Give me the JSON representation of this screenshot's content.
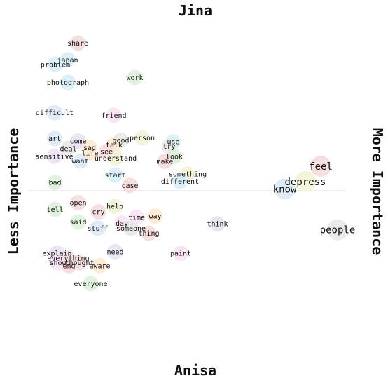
{
  "chart_data": {
    "type": "scatter",
    "title": "",
    "axis_labels": {
      "top": "Jina",
      "bottom": "Anisa",
      "left": "Less Importance",
      "right": "More Importance"
    },
    "midline": true,
    "x_range": [
      0,
      1
    ],
    "y_range": [
      0,
      1
    ],
    "points": [
      {
        "word": "share",
        "x": 0.162,
        "y": 0.932,
        "size": 1,
        "color": "#f2dada"
      },
      {
        "word": "japan",
        "x": 0.133,
        "y": 0.881,
        "size": 1,
        "color": "#d4ecf7"
      },
      {
        "word": "problem",
        "x": 0.098,
        "y": 0.867,
        "size": 1,
        "color": "#d4ecf7"
      },
      {
        "word": "work",
        "x": 0.325,
        "y": 0.827,
        "size": 1,
        "color": "#dcf0d8"
      },
      {
        "word": "photograph",
        "x": 0.134,
        "y": 0.812,
        "size": 1,
        "color": "#d4ecf7"
      },
      {
        "word": "difficult",
        "x": 0.096,
        "y": 0.719,
        "size": 1,
        "color": "#dce8f4"
      },
      {
        "word": "friend",
        "x": 0.265,
        "y": 0.711,
        "size": 1,
        "color": "#f8e0f2"
      },
      {
        "word": "art",
        "x": 0.096,
        "y": 0.64,
        "size": 1,
        "color": "#dce8f4"
      },
      {
        "word": "person",
        "x": 0.346,
        "y": 0.642,
        "size": 1,
        "color": "#f2f2d4"
      },
      {
        "word": "good",
        "x": 0.285,
        "y": 0.634,
        "size": 1,
        "color": "#e6e6e6"
      },
      {
        "word": "come",
        "x": 0.163,
        "y": 0.632,
        "size": 1,
        "color": "#e6e0f0"
      },
      {
        "word": "use",
        "x": 0.435,
        "y": 0.63,
        "size": 1,
        "color": "#d4f2f5"
      },
      {
        "word": "talk",
        "x": 0.266,
        "y": 0.62,
        "size": 1,
        "color": "#fde7cf"
      },
      {
        "word": "try",
        "x": 0.423,
        "y": 0.616,
        "size": 1,
        "color": "#e6e6e6"
      },
      {
        "word": "sad",
        "x": 0.196,
        "y": 0.612,
        "size": 1,
        "color": "#fde7cf"
      },
      {
        "word": "deal",
        "x": 0.135,
        "y": 0.609,
        "size": 1,
        "color": "#e6e6e6"
      },
      {
        "word": "see",
        "x": 0.244,
        "y": 0.6,
        "size": 1,
        "color": "#f8d8d8"
      },
      {
        "word": "life",
        "x": 0.197,
        "y": 0.596,
        "size": 1,
        "color": "#fde7cf"
      },
      {
        "word": "sensitive",
        "x": 0.095,
        "y": 0.585,
        "size": 1,
        "color": "#ece0f2"
      },
      {
        "word": "look",
        "x": 0.438,
        "y": 0.585,
        "size": 1,
        "color": "#dcf0d8"
      },
      {
        "word": "understand",
        "x": 0.27,
        "y": 0.58,
        "size": 1,
        "color": "#f2f2d4"
      },
      {
        "word": "want",
        "x": 0.169,
        "y": 0.571,
        "size": 1,
        "color": "#dce8f4"
      },
      {
        "word": "make",
        "x": 0.411,
        "y": 0.57,
        "size": 1,
        "color": "#f8d8d8"
      },
      {
        "word": "feel",
        "x": 0.856,
        "y": 0.555,
        "size": 2,
        "color": "#f2dada"
      },
      {
        "word": "something",
        "x": 0.476,
        "y": 0.531,
        "size": 1,
        "color": "#f2f2d4"
      },
      {
        "word": "start",
        "x": 0.269,
        "y": 0.528,
        "size": 1,
        "color": "#d4ecf7"
      },
      {
        "word": "depress",
        "x": 0.812,
        "y": 0.508,
        "size": 2,
        "color": "#f2f2d4"
      },
      {
        "word": "different",
        "x": 0.454,
        "y": 0.509,
        "size": 1,
        "color": "#d4ecf7"
      },
      {
        "word": "bad",
        "x": 0.097,
        "y": 0.505,
        "size": 1,
        "color": "#dcf0d8"
      },
      {
        "word": "case",
        "x": 0.311,
        "y": 0.496,
        "size": 1,
        "color": "#f8d8d8"
      },
      {
        "word": "know",
        "x": 0.753,
        "y": 0.485,
        "size": 2,
        "color": "#dce8f4"
      },
      {
        "word": "open",
        "x": 0.163,
        "y": 0.443,
        "size": 1,
        "color": "#f2dada"
      },
      {
        "word": "help",
        "x": 0.268,
        "y": 0.432,
        "size": 1,
        "color": "#f2f2d4"
      },
      {
        "word": "tell",
        "x": 0.097,
        "y": 0.423,
        "size": 1,
        "color": "#dcf0d8"
      },
      {
        "word": "cry",
        "x": 0.221,
        "y": 0.415,
        "size": 1,
        "color": "#f2dada"
      },
      {
        "word": "way",
        "x": 0.383,
        "y": 0.402,
        "size": 1,
        "color": "#fde7cf"
      },
      {
        "word": "time",
        "x": 0.33,
        "y": 0.398,
        "size": 1,
        "color": "#f8e0f2"
      },
      {
        "word": "said",
        "x": 0.163,
        "y": 0.384,
        "size": 1,
        "color": "#dcf0d8"
      },
      {
        "word": "day",
        "x": 0.288,
        "y": 0.38,
        "size": 1,
        "color": "#f8e0f2"
      },
      {
        "word": "think",
        "x": 0.561,
        "y": 0.378,
        "size": 1,
        "color": "#e6e0f0"
      },
      {
        "word": "stuff",
        "x": 0.219,
        "y": 0.365,
        "size": 1,
        "color": "#dce8f4"
      },
      {
        "word": "someone",
        "x": 0.314,
        "y": 0.364,
        "size": 1,
        "color": "#e6e6e6"
      },
      {
        "word": "people",
        "x": 0.904,
        "y": 0.36,
        "size": 2,
        "color": "#e6e6e6"
      },
      {
        "word": "thing",
        "x": 0.365,
        "y": 0.349,
        "size": 1,
        "color": "#f8d8d8"
      },
      {
        "word": "need",
        "x": 0.269,
        "y": 0.293,
        "size": 1,
        "color": "#e6e0f0"
      },
      {
        "word": "explain",
        "x": 0.103,
        "y": 0.288,
        "size": 1,
        "color": "#e6e0f0"
      },
      {
        "word": "paint",
        "x": 0.456,
        "y": 0.288,
        "size": 1,
        "color": "#f8e0f2"
      },
      {
        "word": "everything",
        "x": 0.135,
        "y": 0.273,
        "size": 1,
        "color": "#f2dada"
      },
      {
        "word": "show",
        "x": 0.105,
        "y": 0.259,
        "size": 1,
        "color": "#f8e0f2"
      },
      {
        "word": "thought",
        "x": 0.167,
        "y": 0.259,
        "size": 1,
        "color": "#f2dada"
      },
      {
        "word": "end",
        "x": 0.137,
        "y": 0.25,
        "size": 1,
        "color": "#f8d8d8"
      },
      {
        "word": "aware",
        "x": 0.225,
        "y": 0.25,
        "size": 1,
        "color": "#fde7cf"
      },
      {
        "word": "everyone",
        "x": 0.199,
        "y": 0.195,
        "size": 1,
        "color": "#dcf0d8"
      }
    ]
  }
}
